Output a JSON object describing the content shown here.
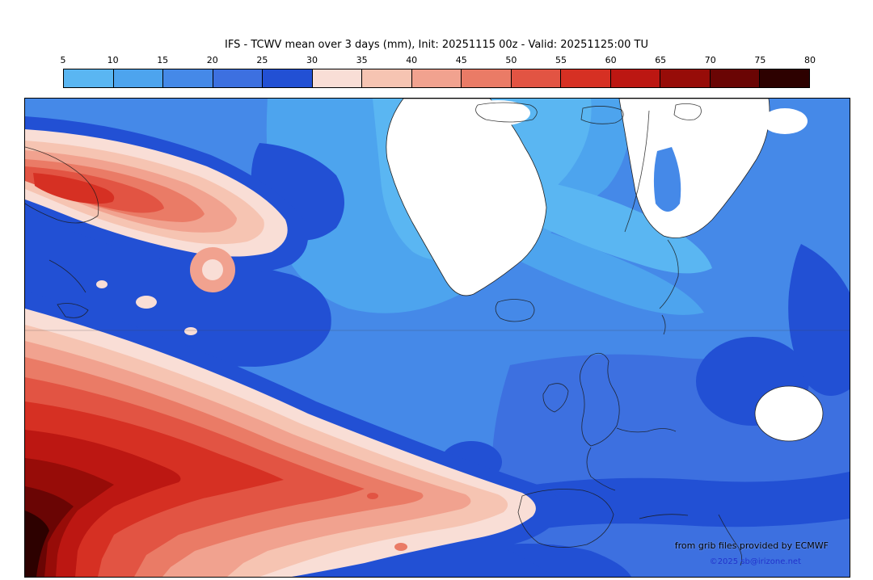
{
  "title": "IFS - TCWV mean over 3 days (mm), Init: 20251115 00z - Valid: 20251125:00 TU",
  "colorbar": {
    "ticks": [
      "5",
      "10",
      "15",
      "20",
      "25",
      "30",
      "35",
      "40",
      "45",
      "50",
      "55",
      "60",
      "65",
      "70",
      "75",
      "80"
    ],
    "colors": [
      "#5ab6f2",
      "#4da4ee",
      "#4589e8",
      "#3d70e0",
      "#2250d4",
      "#f9ded6",
      "#f6c4b2",
      "#f1a28f",
      "#ea7b66",
      "#e25443",
      "#d63023",
      "#bc1712",
      "#970c08",
      "#6a0504",
      "#2d0100"
    ]
  },
  "map": {
    "attribution_line1": "from grib files provided by ECMWF",
    "attribution_line2": "©2025 sb@irizone.net"
  },
  "chart_data": {
    "type": "heatmap",
    "title": "IFS - TCWV mean over 3 days (mm)",
    "init": "20251115 00z",
    "valid": "20251125:00 TU",
    "unit": "mm",
    "colorbar_levels": [
      5,
      10,
      15,
      20,
      25,
      30,
      35,
      40,
      45,
      50,
      55,
      60,
      65,
      70,
      75,
      80
    ],
    "colorbar_colors": [
      "#5ab6f2",
      "#4da4ee",
      "#4589e8",
      "#3d70e0",
      "#2250d4",
      "#f9ded6",
      "#f6c4b2",
      "#f1a28f",
      "#ea7b66",
      "#e25443",
      "#d63023",
      "#bc1712",
      "#970c08",
      "#6a0504",
      "#2d0100"
    ],
    "legend_position": "top",
    "description": "Filled contour map of total column water vapour over the North Atlantic and Europe: values below 5 mm (white) over Greenland and Scandinavia, 10-30 mm (blues) over most of the ocean and Europe, and two high-moisture bands above 30 mm (pinks to dark red, locally above 75 mm) over the western and subtropical Atlantic at left and bottom-left."
  }
}
